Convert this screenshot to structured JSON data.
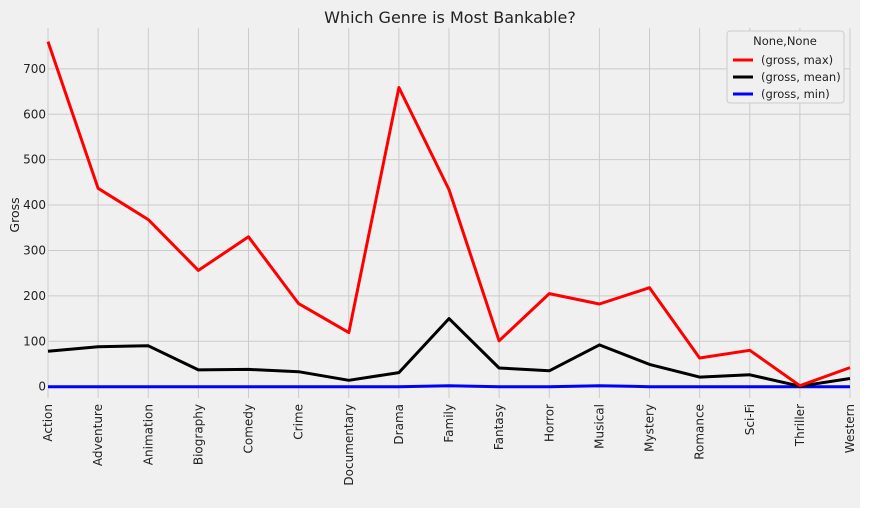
{
  "chart_data": {
    "type": "line",
    "title": "Which Genre is Most Bankable?",
    "xlabel": "",
    "ylabel": "Gross",
    "categories": [
      "Action",
      "Adventure",
      "Animation",
      "Biography",
      "Comedy",
      "Crime",
      "Documentary",
      "Drama",
      "Family",
      "Fantasy",
      "Horror",
      "Musical",
      "Mystery",
      "Romance",
      "Sci-Fi",
      "Thriller",
      "Western"
    ],
    "yticks": [
      0,
      100,
      200,
      300,
      400,
      500,
      600,
      700
    ],
    "ylim": [
      -25,
      790
    ],
    "grid": true,
    "legend": {
      "title": "None,None",
      "position": "top-right"
    },
    "series": [
      {
        "name": "(gross, max)",
        "color": "#ff0000",
        "values": [
          760,
          437,
          368,
          256,
          330,
          183,
          119,
          659,
          434,
          101,
          205,
          182,
          218,
          63,
          80,
          2,
          42
        ]
      },
      {
        "name": "(gross, mean)",
        "color": "#000000",
        "values": [
          78,
          88,
          90,
          37,
          38,
          33,
          14,
          31,
          150,
          41,
          35,
          92,
          49,
          21,
          26,
          1,
          18
        ]
      },
      {
        "name": "(gross, min)",
        "color": "#0000ff",
        "values": [
          0,
          0,
          0,
          0,
          0,
          0,
          0,
          0,
          2,
          0,
          0,
          2,
          0,
          0,
          0,
          0,
          0
        ]
      }
    ]
  }
}
